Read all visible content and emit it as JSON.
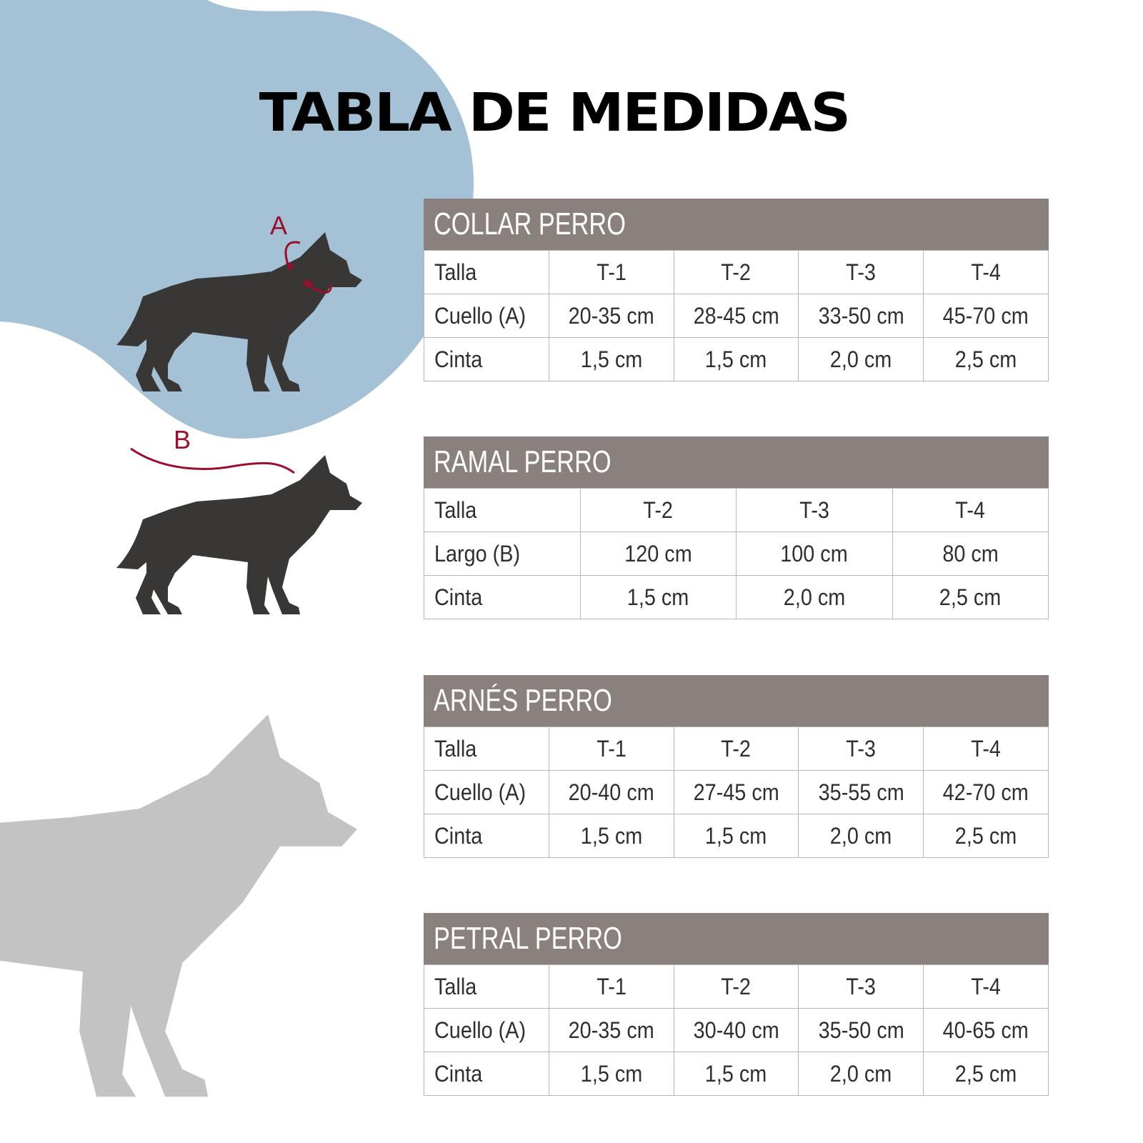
{
  "title": "TABLA DE MEDIDAS",
  "colors": {
    "blob": "#a5c1d6",
    "header": "#8a807d",
    "dog_dark": "#383736",
    "dog_light": "#c3c3c3",
    "measure_line": "#9a0f2e"
  },
  "illustration": {
    "label_a": "A",
    "label_b": "B"
  },
  "tables": [
    {
      "title": "COLLAR PERRO",
      "rows": [
        [
          "Talla",
          "T-1",
          "T-2",
          "T-3",
          "T-4"
        ],
        [
          "Cuello (A)",
          "20-35 cm",
          "28-45 cm",
          "33-50 cm",
          "45-70 cm"
        ],
        [
          "Cinta",
          "1,5 cm",
          "1,5 cm",
          "2,0 cm",
          "2,5 cm"
        ]
      ]
    },
    {
      "title": "RAMAL PERRO",
      "rows": [
        [
          "Talla",
          "T-2",
          "T-3",
          "T-4"
        ],
        [
          "Largo (B)",
          "120 cm",
          "100 cm",
          "80 cm"
        ],
        [
          "Cinta",
          "1,5 cm",
          "2,0 cm",
          "2,5 cm"
        ]
      ]
    },
    {
      "title": "ARNÉS PERRO",
      "rows": [
        [
          "Talla",
          "T-1",
          "T-2",
          "T-3",
          "T-4"
        ],
        [
          "Cuello (A)",
          "20-40 cm",
          "27-45 cm",
          "35-55 cm",
          "42-70 cm"
        ],
        [
          "Cinta",
          "1,5 cm",
          "1,5 cm",
          "2,0 cm",
          "2,5 cm"
        ]
      ]
    },
    {
      "title": "PETRAL PERRO",
      "rows": [
        [
          "Talla",
          "T-1",
          "T-2",
          "T-3",
          "T-4"
        ],
        [
          "Cuello (A)",
          "20-35 cm",
          "30-40 cm",
          "35-50 cm",
          "40-65 cm"
        ],
        [
          "Cinta",
          "1,5 cm",
          "1,5 cm",
          "2,0 cm",
          "2,5 cm"
        ]
      ]
    }
  ]
}
